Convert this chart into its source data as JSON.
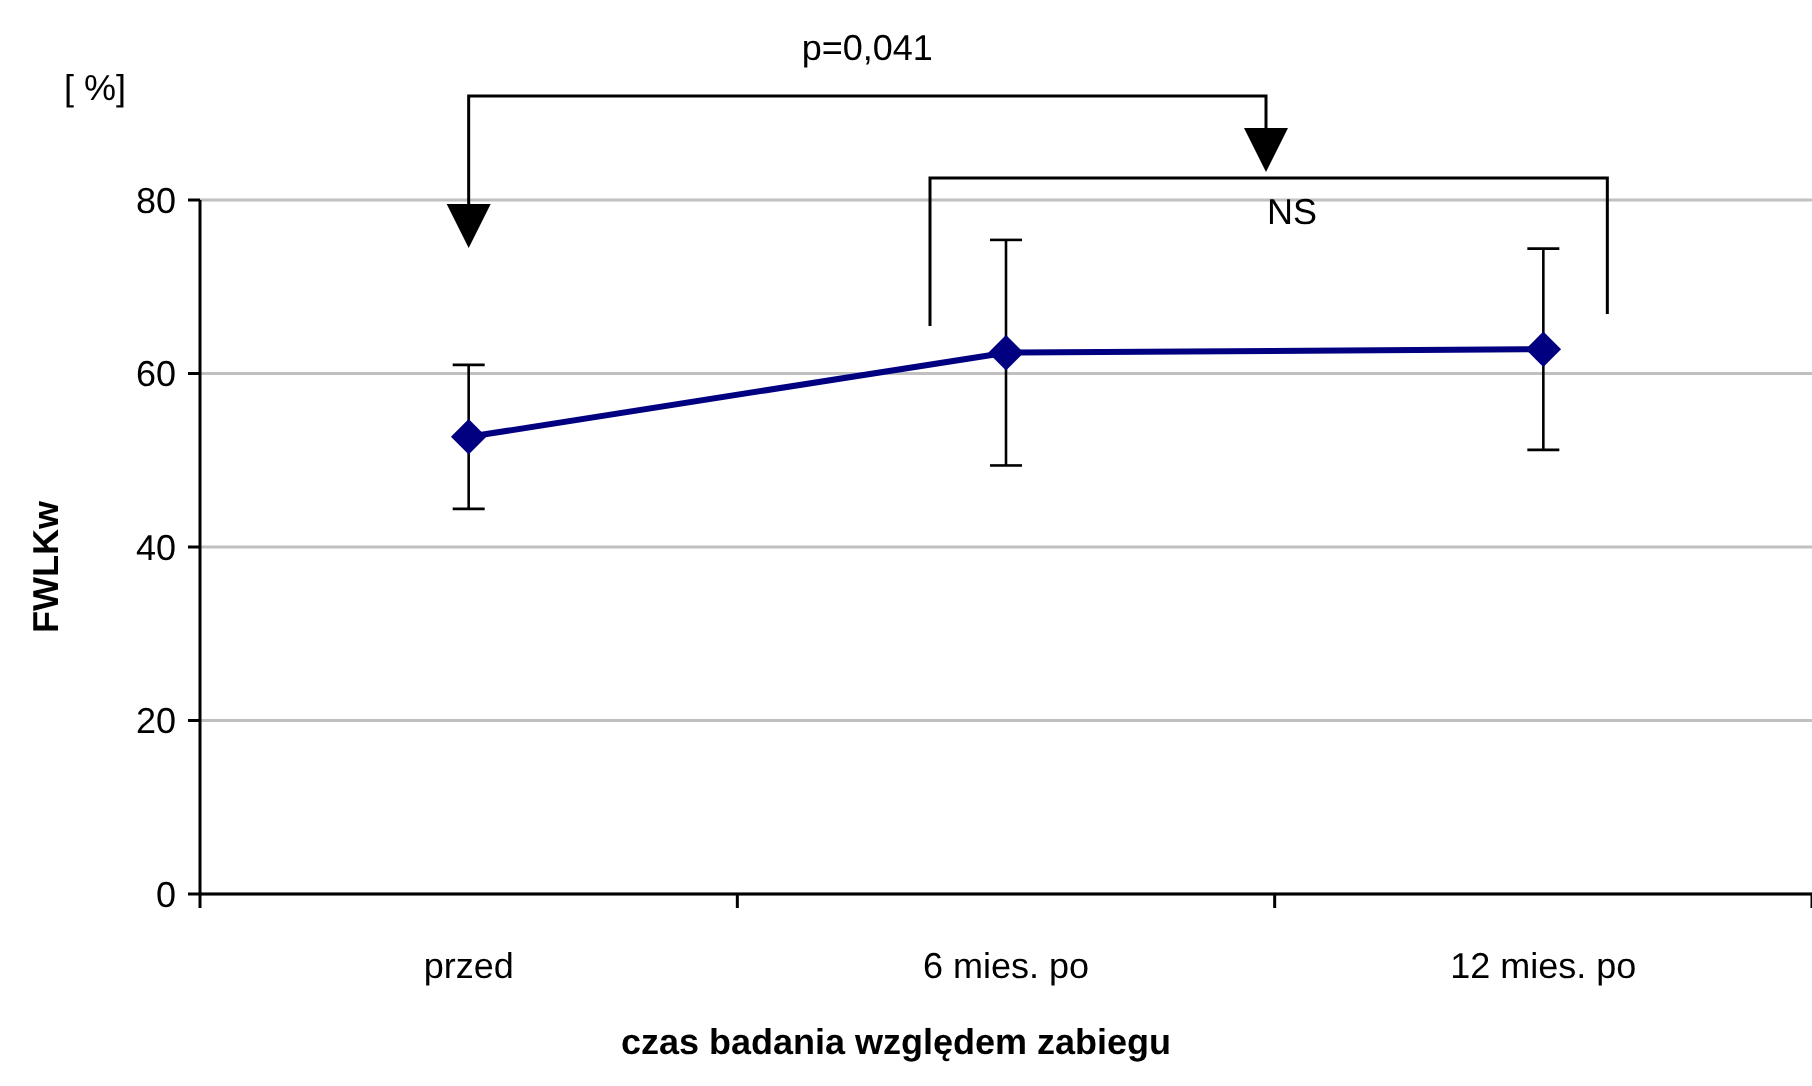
{
  "chart_data": {
    "type": "line",
    "categories": [
      "przed",
      "6 mies. po",
      "12 mies. po"
    ],
    "series": [
      {
        "color": "#000080",
        "values": [
          52.7,
          62.4,
          62.8
        ],
        "errors": [
          8.3,
          13,
          11.6
        ]
      }
    ],
    "ylabel": "FWLKw",
    "xlabel": "czas badania względem zabiegu",
    "annotations": [
      "[ %]",
      "p=0,041",
      "NS"
    ],
    "ylim": [
      0,
      80
    ],
    "yticks": [
      0,
      20,
      40,
      60,
      80
    ],
    "grid": "y",
    "marker": "diamond",
    "line_style": "solid"
  }
}
